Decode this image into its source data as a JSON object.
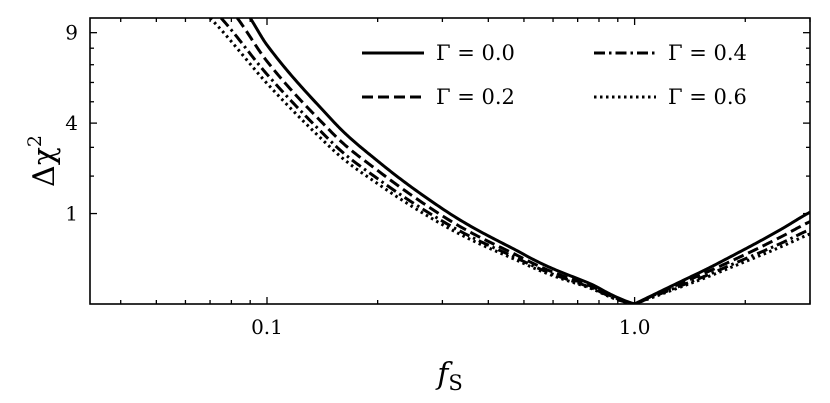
{
  "chart_data": {
    "type": "line",
    "xlabel": "f",
    "xlabel_sub": "S",
    "ylabel": "Δχ",
    "ylabel_sup": "2",
    "x_scale": "log",
    "y_scale": "sqrt",
    "xlim": [
      0.033,
      3.0
    ],
    "ylim": [
      0,
      10
    ],
    "x_ticks": [
      {
        "value": 0.1,
        "label": "0.1"
      },
      {
        "value": 1.0,
        "label": "1.0"
      }
    ],
    "y_ticks": [
      {
        "value": 1,
        "label": "1"
      },
      {
        "value": 4,
        "label": "4"
      },
      {
        "value": 9,
        "label": "9"
      }
    ],
    "grid": false,
    "legend_position": "top-right",
    "series": [
      {
        "name": "Γ = 0.0",
        "dash": "solid",
        "x": [
          0.09,
          0.1,
          0.15,
          0.2,
          0.3,
          0.5,
          0.8,
          1.0,
          1.5,
          2.0,
          2.5,
          3.0
        ],
        "y": [
          10.0,
          8.2,
          4.15,
          2.5,
          1.11,
          0.3,
          0.031,
          0.0,
          0.12,
          0.37,
          0.68,
          1.03
        ]
      },
      {
        "name": "Γ = 0.2",
        "dash": "dashed",
        "x": [
          0.083,
          0.1,
          0.15,
          0.2,
          0.3,
          0.5,
          0.8,
          1.0,
          1.5,
          2.0,
          2.5,
          3.0
        ],
        "y": [
          10.0,
          7.2,
          3.6,
          2.18,
          0.95,
          0.25,
          0.024,
          0.0,
          0.1,
          0.3,
          0.55,
          0.83
        ]
      },
      {
        "name": "Γ = 0.4",
        "dash": "dashdot",
        "x": [
          0.075,
          0.1,
          0.15,
          0.2,
          0.3,
          0.5,
          0.8,
          1.0,
          1.5,
          2.0,
          2.5,
          3.0
        ],
        "y": [
          10.0,
          6.45,
          3.2,
          1.92,
          0.84,
          0.22,
          0.02,
          0.0,
          0.08,
          0.25,
          0.45,
          0.68
        ]
      },
      {
        "name": "Γ = 0.6",
        "dash": "dotted",
        "x": [
          0.07,
          0.1,
          0.15,
          0.2,
          0.3,
          0.5,
          0.8,
          1.0,
          1.5,
          2.0,
          2.5,
          3.0
        ],
        "y": [
          10.0,
          5.95,
          2.95,
          1.77,
          0.77,
          0.2,
          0.018,
          0.0,
          0.07,
          0.22,
          0.4,
          0.6
        ]
      }
    ]
  }
}
